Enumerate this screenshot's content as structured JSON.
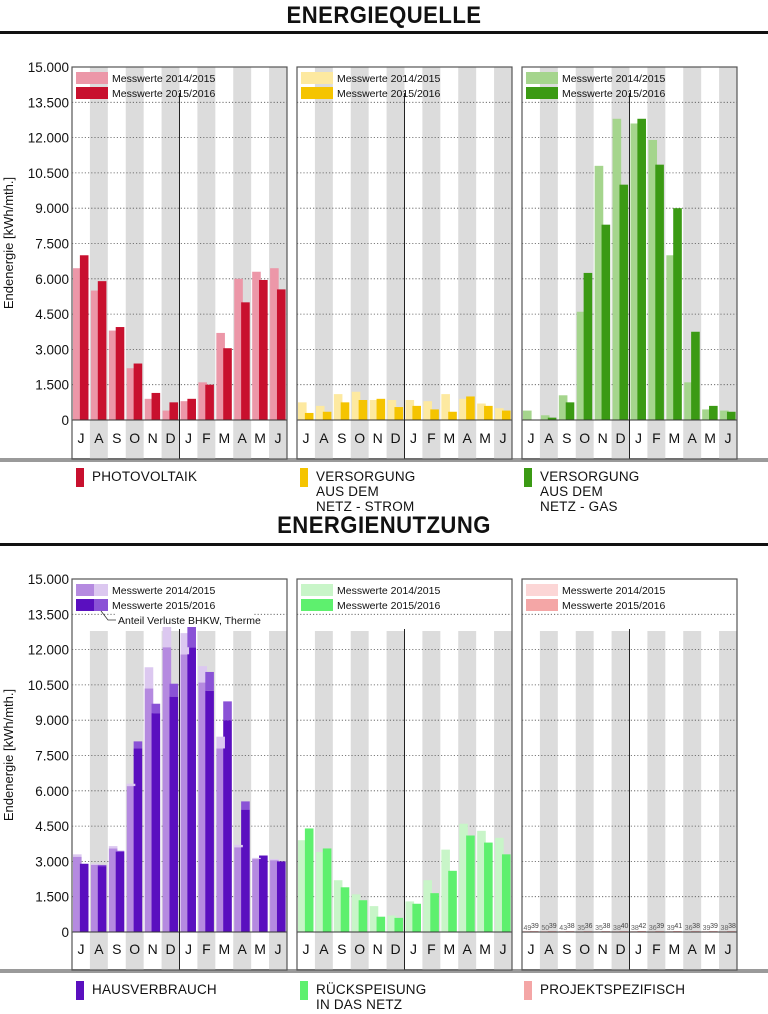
{
  "sections": {
    "source_title": "ENERGIEQUELLE",
    "usage_title": "ENERGIENUTZUNG"
  },
  "ylabel": "Endenergie [kWh/mth.]",
  "y_ticks": [
    "0",
    "1.500",
    "3.000",
    "4.500",
    "6.000",
    "7.500",
    "9.000",
    "10.500",
    "12.000",
    "13.500",
    "15.000"
  ],
  "months": [
    "J",
    "A",
    "S",
    "O",
    "N",
    "D",
    "J",
    "F",
    "M",
    "A",
    "M",
    "J"
  ],
  "series_labels": [
    "Messwerte 2014/2015",
    "Messwerte 2015/2016"
  ],
  "annotation": "Anteil Verluste BHKW, Therme",
  "colors": {
    "pv": [
      "#ec97a8",
      "#c8102e"
    ],
    "strom": [
      "#fde9a0",
      "#f5c400"
    ],
    "gas": [
      "#a5d58d",
      "#3b9a14"
    ],
    "haus": [
      "#b58ae0",
      "#5a0fbf"
    ],
    "haus_loss": [
      "#dcc8f0",
      "#8a52d6"
    ],
    "rueck": [
      "#c8f5c8",
      "#5ef06e"
    ],
    "projekt": [
      "#fcd6d6",
      "#f4a6a6"
    ]
  },
  "legend": {
    "pv": "PHOTOVOLTAIK",
    "strom": "VERSORGUNG\nAUS DEM NETZ - STROM",
    "gas": "VERSORGUNG\nAUS DEM NETZ - GAS",
    "haus": "HAUSVERBRAUCH",
    "rueck": "RÜCKSPEISUNG\nIN DAS NETZ",
    "projekt": "PROJEKTSPEZIFISCH"
  },
  "chart_data": [
    {
      "type": "bar",
      "name": "PHOTOVOLTAIK",
      "categories": [
        "J",
        "A",
        "S",
        "O",
        "N",
        "D",
        "J",
        "F",
        "M",
        "A",
        "M",
        "J"
      ],
      "ylim": [
        0,
        15000
      ],
      "series": [
        {
          "name": "Messwerte 2014/2015",
          "values": [
            6450,
            5500,
            3800,
            2200,
            900,
            400,
            800,
            1600,
            3700,
            6000,
            6300,
            6450
          ]
        },
        {
          "name": "Messwerte 2015/2016",
          "values": [
            7000,
            5900,
            3950,
            2400,
            1150,
            750,
            900,
            1500,
            3050,
            5000,
            5950,
            5550
          ]
        }
      ]
    },
    {
      "type": "bar",
      "name": "VERSORGUNG AUS DEM NETZ - STROM",
      "categories": [
        "J",
        "A",
        "S",
        "O",
        "N",
        "D",
        "J",
        "F",
        "M",
        "A",
        "M",
        "J"
      ],
      "ylim": [
        0,
        15000
      ],
      "series": [
        {
          "name": "Messwerte 2014/2015",
          "values": [
            750,
            600,
            1100,
            1200,
            850,
            850,
            850,
            800,
            1100,
            900,
            700,
            500
          ]
        },
        {
          "name": "Messwerte 2015/2016",
          "values": [
            300,
            350,
            750,
            850,
            900,
            550,
            600,
            450,
            350,
            1000,
            600,
            400
          ]
        }
      ]
    },
    {
      "type": "bar",
      "name": "VERSORGUNG AUS DEM NETZ - GAS",
      "categories": [
        "J",
        "A",
        "S",
        "O",
        "N",
        "D",
        "J",
        "F",
        "M",
        "A",
        "M",
        "J"
      ],
      "ylim": [
        0,
        15000
      ],
      "series": [
        {
          "name": "Messwerte 2014/2015",
          "values": [
            400,
            200,
            1050,
            4600,
            10800,
            12800,
            12600,
            11900,
            7000,
            1600,
            450,
            400
          ]
        },
        {
          "name": "Messwerte 2015/2016",
          "values": [
            0,
            100,
            750,
            6250,
            8300,
            10000,
            12800,
            10850,
            9000,
            3750,
            600,
            350
          ]
        }
      ]
    },
    {
      "type": "bar",
      "name": "HAUSVERBRAUCH",
      "categories": [
        "J",
        "A",
        "S",
        "O",
        "N",
        "D",
        "J",
        "F",
        "M",
        "A",
        "M",
        "J"
      ],
      "ylim": [
        0,
        15000
      ],
      "series": [
        {
          "name": "Messwerte 2014/2015",
          "values": [
            3200,
            2850,
            3550,
            6200,
            10350,
            12100,
            11800,
            10600,
            7800,
            3600,
            3100,
            3050
          ]
        },
        {
          "name": "Messwerte 2015/2016",
          "values": [
            2900,
            2800,
            3400,
            7800,
            9300,
            10000,
            12100,
            10250,
            9000,
            5200,
            3250,
            3000
          ]
        },
        {
          "name": "Anteil Verluste BHKW, Therme (2014/2015)",
          "values": [
            100,
            50,
            100,
            100,
            900,
            900,
            900,
            700,
            500,
            100,
            50,
            50
          ]
        },
        {
          "name": "Anteil Verluste BHKW, Therme (2015/2016)",
          "values": [
            0,
            50,
            50,
            300,
            400,
            550,
            1000,
            800,
            800,
            350,
            0,
            0
          ]
        }
      ]
    },
    {
      "type": "bar",
      "name": "RÜCKSPEISUNG IN DAS NETZ",
      "categories": [
        "J",
        "A",
        "S",
        "O",
        "N",
        "D",
        "J",
        "F",
        "M",
        "A",
        "M",
        "J"
      ],
      "ylim": [
        0,
        15000
      ],
      "series": [
        {
          "name": "Messwerte 2014/2015",
          "values": [
            3900,
            3400,
            2200,
            1600,
            1100,
            700,
            1300,
            2200,
            3500,
            4600,
            4300,
            4000
          ]
        },
        {
          "name": "Messwerte 2015/2016",
          "values": [
            4400,
            3550,
            1900,
            1350,
            650,
            600,
            1200,
            1650,
            2600,
            4100,
            3800,
            3300
          ]
        }
      ]
    },
    {
      "type": "bar",
      "name": "PROJEKTSPEZIFISCH",
      "categories": [
        "J",
        "A",
        "S",
        "O",
        "N",
        "D",
        "J",
        "F",
        "M",
        "A",
        "M",
        "J"
      ],
      "ylim": [
        0,
        15000
      ],
      "series": [
        {
          "name": "Messwerte 2014/2015",
          "values": [
            49,
            50,
            43,
            35,
            35,
            38,
            38,
            36,
            39,
            36,
            39,
            38
          ]
        },
        {
          "name": "Messwerte 2015/2016",
          "values": [
            39,
            39,
            38,
            36,
            38,
            40,
            42,
            39,
            41,
            38,
            39,
            38
          ]
        }
      ]
    }
  ]
}
